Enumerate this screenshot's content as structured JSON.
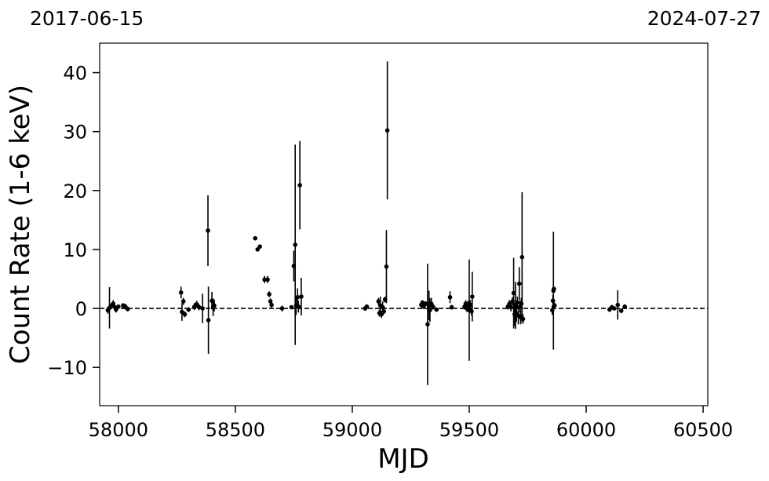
{
  "chart_data": {
    "type": "scatter",
    "xlabel": "MJD",
    "ylabel": "Count Rate (1-6 keV)",
    "xlim": [
      57920,
      60520
    ],
    "ylim": [
      -16.5,
      45
    ],
    "xticks": [
      58000,
      58500,
      59000,
      59500,
      60000,
      60500
    ],
    "yticks": [
      -10,
      0,
      10,
      20,
      30,
      40
    ],
    "xtick_labels": [
      "58000",
      "58500",
      "59000",
      "59500",
      "60000",
      "60500"
    ],
    "ytick_labels": [
      "−10",
      "0",
      "10",
      "20",
      "30",
      "40"
    ],
    "top_labels": {
      "left": "2017-06-15",
      "right": "2024-07-27"
    },
    "reference_line": {
      "y": 0,
      "style": "dashed"
    },
    "grid": false,
    "marker_color": "#000000",
    "points": [
      {
        "x": 57955,
        "y": -0.3,
        "err": 0.6
      },
      {
        "x": 57962,
        "y": 0.1,
        "err": 3.5
      },
      {
        "x": 57970,
        "y": 0.4,
        "err": 0.5
      },
      {
        "x": 57978,
        "y": 0.8,
        "err": 0.6
      },
      {
        "x": 57985,
        "y": 0.2,
        "err": 0.4
      },
      {
        "x": 57990,
        "y": -0.2,
        "err": 0.5
      },
      {
        "x": 58000,
        "y": 0.3,
        "err": 0.4
      },
      {
        "x": 58020,
        "y": 0.5,
        "err": 0.4
      },
      {
        "x": 58030,
        "y": 0.3,
        "err": 0.5
      },
      {
        "x": 58040,
        "y": -0.1,
        "err": 0.4
      },
      {
        "x": 58268,
        "y": 2.7,
        "err": 1.0
      },
      {
        "x": 58272,
        "y": -0.6,
        "err": 1.5
      },
      {
        "x": 58278,
        "y": 1.2,
        "err": 0.6
      },
      {
        "x": 58284,
        "y": -1.0,
        "err": 0.5
      },
      {
        "x": 58300,
        "y": -0.2,
        "err": 0.4
      },
      {
        "x": 58325,
        "y": 0.3,
        "err": 0.6
      },
      {
        "x": 58335,
        "y": 0.7,
        "err": 0.6
      },
      {
        "x": 58345,
        "y": 0.2,
        "err": 0.5
      },
      {
        "x": 58360,
        "y": 0.0,
        "err": 2.5
      },
      {
        "x": 58383,
        "y": 13.2,
        "err": 6.0
      },
      {
        "x": 58385,
        "y": -2.0,
        "err": 5.7
      },
      {
        "x": 58400,
        "y": 1.3,
        "err": 1.5
      },
      {
        "x": 58405,
        "y": 0.2,
        "err": 1.5
      },
      {
        "x": 58410,
        "y": 0.5,
        "err": 1.0
      },
      {
        "x": 58585,
        "y": 11.9,
        "err": 0.3
      },
      {
        "x": 58595,
        "y": 10.0,
        "err": 0.3
      },
      {
        "x": 58605,
        "y": 10.5,
        "err": 0.3
      },
      {
        "x": 58625,
        "y": 4.9,
        "err": 0.6
      },
      {
        "x": 58638,
        "y": 4.9,
        "err": 0.6
      },
      {
        "x": 58645,
        "y": 2.4,
        "err": 0.5
      },
      {
        "x": 58650,
        "y": 1.2,
        "err": 0.5
      },
      {
        "x": 58655,
        "y": 0.6,
        "err": 0.5
      },
      {
        "x": 58700,
        "y": 0.0,
        "err": 0.5
      },
      {
        "x": 58740,
        "y": 0.2,
        "err": 0.3
      },
      {
        "x": 58750,
        "y": 7.2,
        "err": 2.6
      },
      {
        "x": 58756,
        "y": 10.8,
        "err": 17.0
      },
      {
        "x": 58760,
        "y": 0.5,
        "err": 1.6
      },
      {
        "x": 58766,
        "y": 1.9,
        "err": 1.5
      },
      {
        "x": 58770,
        "y": 0.3,
        "err": 1.0
      },
      {
        "x": 58776,
        "y": 20.9,
        "err": 7.5
      },
      {
        "x": 58782,
        "y": 2.0,
        "err": 3.2
      },
      {
        "x": 59055,
        "y": 0.0,
        "err": 0.4
      },
      {
        "x": 59062,
        "y": 0.3,
        "err": 0.4
      },
      {
        "x": 59112,
        "y": 1.2,
        "err": 0.6
      },
      {
        "x": 59116,
        "y": -0.8,
        "err": 0.6
      },
      {
        "x": 59120,
        "y": 0.5,
        "err": 1.5
      },
      {
        "x": 59125,
        "y": -1.0,
        "err": 0.6
      },
      {
        "x": 59130,
        "y": 0.2,
        "err": 1.0
      },
      {
        "x": 59135,
        "y": -0.5,
        "err": 0.5
      },
      {
        "x": 59140,
        "y": 1.5,
        "err": 0.5
      },
      {
        "x": 59146,
        "y": 7.1,
        "err": 6.2
      },
      {
        "x": 59150,
        "y": 30.2,
        "err": 11.7
      },
      {
        "x": 59295,
        "y": 0.6,
        "err": 0.4
      },
      {
        "x": 59300,
        "y": 1.0,
        "err": 0.4
      },
      {
        "x": 59305,
        "y": 0.3,
        "err": 0.4
      },
      {
        "x": 59315,
        "y": 0.8,
        "err": 0.4
      },
      {
        "x": 59322,
        "y": -2.7,
        "err": 10.3
      },
      {
        "x": 59328,
        "y": 0.5,
        "err": 2.5
      },
      {
        "x": 59332,
        "y": -0.3,
        "err": 2.0
      },
      {
        "x": 59338,
        "y": 0.8,
        "err": 1.0
      },
      {
        "x": 59345,
        "y": 0.3,
        "err": 0.5
      },
      {
        "x": 59360,
        "y": -0.2,
        "err": 0.4
      },
      {
        "x": 59418,
        "y": 1.9,
        "err": 1.0
      },
      {
        "x": 59425,
        "y": 0.2,
        "err": 0.4
      },
      {
        "x": 59480,
        "y": 0.3,
        "err": 0.5
      },
      {
        "x": 59485,
        "y": 0.8,
        "err": 0.6
      },
      {
        "x": 59490,
        "y": 0.0,
        "err": 0.6
      },
      {
        "x": 59495,
        "y": 0.5,
        "err": 0.8
      },
      {
        "x": 59500,
        "y": -0.3,
        "err": 8.6
      },
      {
        "x": 59505,
        "y": 0.6,
        "err": 0.8
      },
      {
        "x": 59510,
        "y": -0.5,
        "err": 0.7
      },
      {
        "x": 59513,
        "y": 2.0,
        "err": 4.2
      },
      {
        "x": 59665,
        "y": 0.3,
        "err": 0.5
      },
      {
        "x": 59672,
        "y": 0.8,
        "err": 0.6
      },
      {
        "x": 59678,
        "y": 0.2,
        "err": 0.7
      },
      {
        "x": 59685,
        "y": 1.2,
        "err": 0.7
      },
      {
        "x": 59690,
        "y": 2.6,
        "err": 6.0
      },
      {
        "x": 59694,
        "y": -1.0,
        "err": 2.0
      },
      {
        "x": 59698,
        "y": 0.5,
        "err": 4.0
      },
      {
        "x": 59702,
        "y": -0.8,
        "err": 1.5
      },
      {
        "x": 59706,
        "y": 1.0,
        "err": 1.0
      },
      {
        "x": 59710,
        "y": -1.2,
        "err": 1.5
      },
      {
        "x": 59714,
        "y": 4.2,
        "err": 2.8
      },
      {
        "x": 59717,
        "y": 0.3,
        "err": 1.0
      },
      {
        "x": 59720,
        "y": -1.5,
        "err": 1.2
      },
      {
        "x": 59723,
        "y": 0.8,
        "err": 1.0
      },
      {
        "x": 59726,
        "y": 8.7,
        "err": 11.0
      },
      {
        "x": 59730,
        "y": -1.8,
        "err": 0.8
      },
      {
        "x": 59855,
        "y": -0.3,
        "err": 0.8
      },
      {
        "x": 59858,
        "y": 1.3,
        "err": 1.0
      },
      {
        "x": 59860,
        "y": 3.0,
        "err": 10.0
      },
      {
        "x": 59862,
        "y": 3.3,
        "err": 0.4
      },
      {
        "x": 59865,
        "y": 0.5,
        "err": 0.5
      },
      {
        "x": 60100,
        "y": -0.2,
        "err": 0.4
      },
      {
        "x": 60110,
        "y": 0.2,
        "err": 0.4
      },
      {
        "x": 60120,
        "y": 0.0,
        "err": 0.3
      },
      {
        "x": 60135,
        "y": 0.6,
        "err": 2.5
      },
      {
        "x": 60150,
        "y": -0.4,
        "err": 0.4
      },
      {
        "x": 60165,
        "y": 0.3,
        "err": 0.4
      }
    ]
  }
}
